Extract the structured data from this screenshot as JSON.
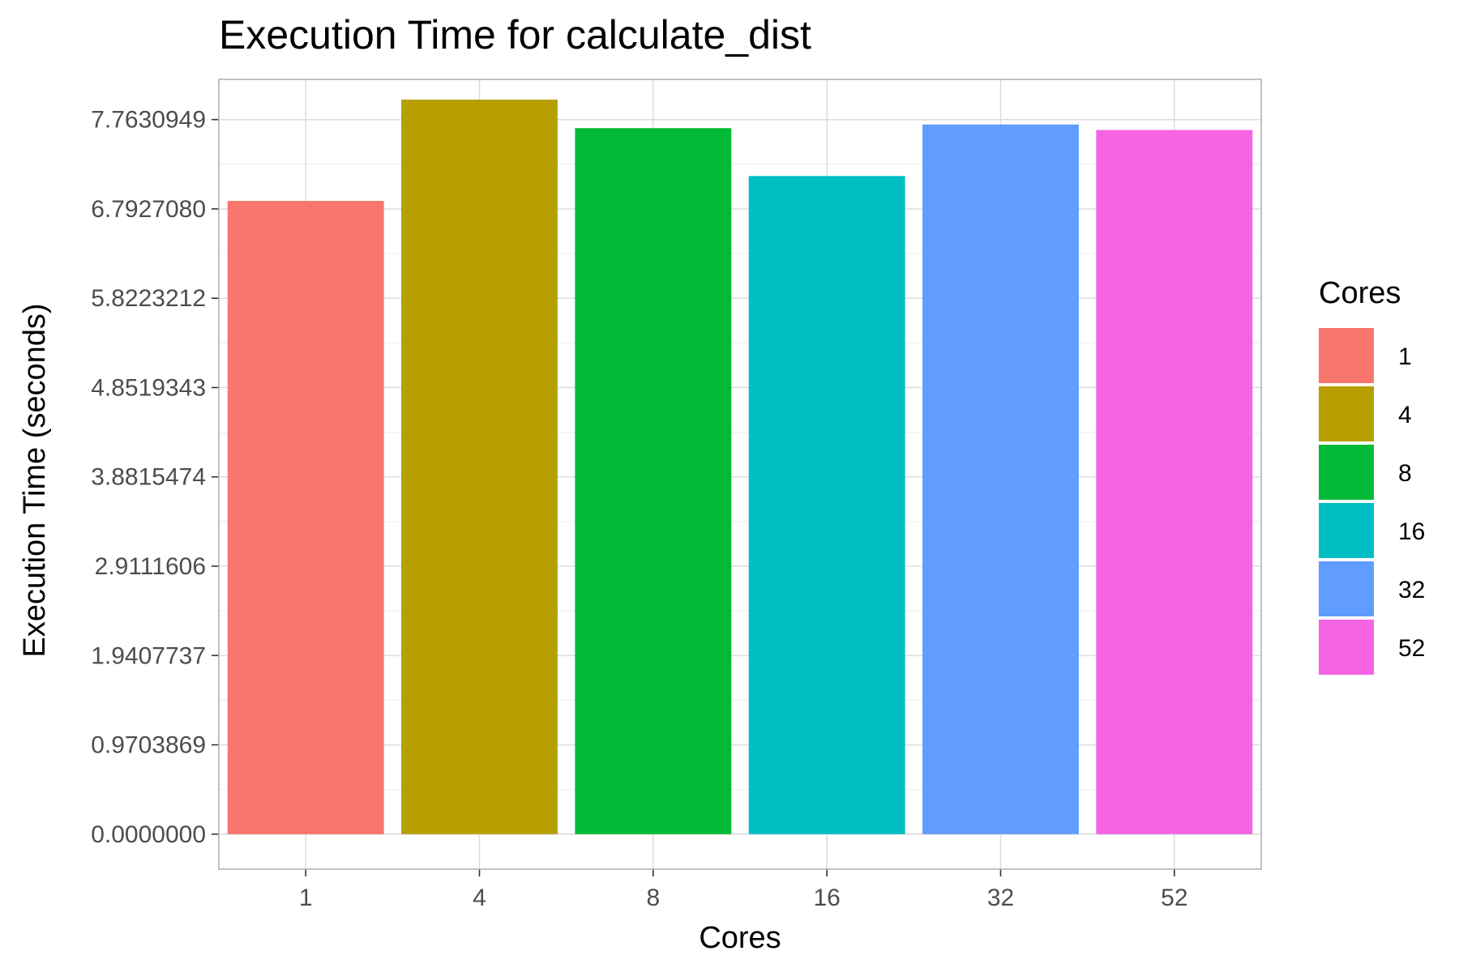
{
  "chart_data": {
    "type": "bar",
    "title": "Execution Time for calculate_dist",
    "xlabel": "Cores",
    "ylabel": "Execution Time (seconds)",
    "categories": [
      "1",
      "4",
      "8",
      "16",
      "32",
      "52"
    ],
    "values": [
      6.88,
      7.98,
      7.67,
      7.15,
      7.71,
      7.65
    ],
    "colors": [
      "#F8766D",
      "#B79F00",
      "#00BA38",
      "#00BFC4",
      "#619CFF",
      "#F564E3"
    ],
    "yticks": [
      0.0,
      0.9703869,
      1.9407737,
      2.9111606,
      3.8815474,
      4.8519343,
      5.8223212,
      6.792708,
      7.7630949
    ],
    "ytick_labels": [
      "0.0000000",
      "0.9703869",
      "1.9407737",
      "2.9111606",
      "3.8815474",
      "4.8519343",
      "5.8223212",
      "6.7927080",
      "7.7630949"
    ],
    "ylim": [
      -0.38,
      8.2
    ],
    "grid": true,
    "legend": {
      "title": "Cores",
      "position": "right",
      "labels": [
        "1",
        "4",
        "8",
        "16",
        "32",
        "52"
      ]
    }
  }
}
